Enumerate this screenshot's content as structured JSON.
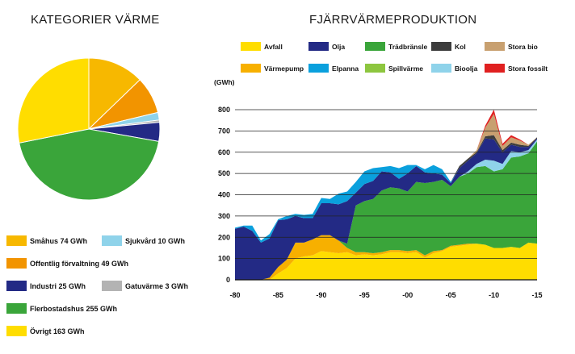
{
  "pie": {
    "title": "KATEGORIER VÄRME",
    "chart_data": {
      "type": "pie",
      "slices": [
        {
          "name": "Småhus",
          "value": 74,
          "unit": "GWh",
          "label": "Småhus 74 GWh",
          "color": "#f7b800"
        },
        {
          "name": "Offentlig förvaltning",
          "value": 49,
          "unit": "GWh",
          "label": "Offentlig förvaltning 49 GWh",
          "color": "#f29400"
        },
        {
          "name": "Sjukvård",
          "value": 10,
          "unit": "GWh",
          "label": "Sjukvård 10 GWh",
          "color": "#8fd3ea"
        },
        {
          "name": "Gatuvärme",
          "value": 3,
          "unit": "GWh",
          "label": "Gatuvärme 3 GWh",
          "color": "#b3b3b3"
        },
        {
          "name": "Industri",
          "value": 25,
          "unit": "GWh",
          "label": "Industri 25 GWh",
          "color": "#232a85"
        },
        {
          "name": "Flerbostadshus",
          "value": 255,
          "unit": "GWh",
          "label": "Flerbostadshus 255 GWh",
          "color": "#3aa53a"
        },
        {
          "name": "Övrigt",
          "value": 163,
          "unit": "GWh",
          "label": "Övrigt 163 GWh",
          "color": "#ffdd00"
        }
      ]
    }
  },
  "area": {
    "title": "FJÄRRVÄRMEPRODUKTION",
    "legend": [
      {
        "name": "Avfall",
        "color": "#ffdd00"
      },
      {
        "name": "Olja",
        "color": "#232a85"
      },
      {
        "name": "Trädbränsle",
        "color": "#3aa53a"
      },
      {
        "name": "Kol",
        "color": "#3d3d3d"
      },
      {
        "name": "Stora bio",
        "color": "#c8a070"
      },
      {
        "name": "Värmepump",
        "color": "#f7b000"
      },
      {
        "name": "Elpanna",
        "color": "#0aa0dd"
      },
      {
        "name": "Spillvärme",
        "color": "#8dc63f"
      },
      {
        "name": "Bioolja",
        "color": "#8fd3ea"
      },
      {
        "name": "Stora fossilt",
        "color": "#e02020"
      }
    ],
    "chart_data": {
      "type": "area",
      "stacked": true,
      "ylabel": "(GWh)",
      "ylim": [
        0,
        800
      ],
      "yticks": [
        0,
        100,
        200,
        300,
        400,
        500,
        600,
        700,
        800
      ],
      "xticks": [
        "-80",
        "-85",
        "-90",
        "-95",
        "-00",
        "-05",
        "-10",
        "-15"
      ],
      "xtick_years": [
        1980,
        1985,
        1990,
        1995,
        2000,
        2005,
        2010,
        2015
      ],
      "grid": true,
      "x": [
        1980,
        1981,
        1982,
        1983,
        1984,
        1985,
        1986,
        1987,
        1988,
        1989,
        1990,
        1991,
        1992,
        1993,
        1994,
        1995,
        1996,
        1997,
        1998,
        1999,
        2000,
        2001,
        2002,
        2003,
        2004,
        2005,
        2006,
        2007,
        2008,
        2009,
        2010,
        2011,
        2012,
        2013,
        2014,
        2015
      ],
      "series": [
        {
          "name": "Avfall",
          "color": "#ffdd00",
          "values": [
            0,
            0,
            0,
            0,
            0,
            30,
            55,
            100,
            110,
            115,
            135,
            130,
            125,
            130,
            115,
            120,
            115,
            120,
            130,
            130,
            125,
            130,
            105,
            125,
            135,
            155,
            160,
            165,
            170,
            165,
            150,
            150,
            155,
            150,
            175,
            170
          ]
        },
        {
          "name": "Värmepump",
          "color": "#f7b000",
          "values": [
            0,
            0,
            0,
            0,
            10,
            30,
            40,
            75,
            65,
            75,
            75,
            80,
            60,
            20,
            15,
            10,
            10,
            10,
            10,
            10,
            10,
            10,
            10,
            10,
            5,
            5,
            5,
            5,
            0,
            0,
            0,
            0,
            0,
            0,
            0,
            0
          ]
        },
        {
          "name": "Trädbränsle",
          "color": "#3aa53a",
          "values": [
            0,
            0,
            0,
            0,
            0,
            0,
            0,
            0,
            0,
            0,
            0,
            0,
            0,
            20,
            220,
            240,
            255,
            290,
            295,
            290,
            280,
            320,
            340,
            325,
            330,
            280,
            320,
            330,
            360,
            370,
            360,
            370,
            420,
            430,
            420,
            480
          ]
        },
        {
          "name": "Spillvärme",
          "color": "#8dc63f",
          "values": [
            0,
            0,
            0,
            0,
            0,
            0,
            0,
            0,
            0,
            0,
            0,
            0,
            0,
            0,
            0,
            0,
            0,
            0,
            0,
            0,
            0,
            0,
            0,
            0,
            0,
            0,
            0,
            0,
            0,
            0,
            0,
            0,
            0,
            0,
            0,
            0
          ]
        },
        {
          "name": "Bioolja",
          "color": "#8fd3ea",
          "values": [
            0,
            0,
            0,
            0,
            0,
            0,
            0,
            0,
            0,
            0,
            0,
            0,
            0,
            0,
            0,
            0,
            0,
            0,
            0,
            0,
            0,
            0,
            0,
            0,
            0,
            0,
            0,
            10,
            15,
            30,
            50,
            25,
            30,
            20,
            15,
            10
          ]
        },
        {
          "name": "Olja",
          "color": "#232a85",
          "values": [
            240,
            250,
            230,
            175,
            185,
            220,
            190,
            125,
            115,
            100,
            150,
            150,
            170,
            200,
            60,
            80,
            85,
            90,
            70,
            45,
            85,
            75,
            50,
            40,
            25,
            15,
            40,
            50,
            50,
            100,
            100,
            55,
            30,
            25,
            15,
            5
          ]
        },
        {
          "name": "Elpanna",
          "color": "#0aa0dd",
          "values": [
            5,
            5,
            25,
            10,
            20,
            5,
            15,
            10,
            15,
            20,
            25,
            20,
            50,
            45,
            50,
            60,
            60,
            20,
            30,
            50,
            40,
            5,
            15,
            40,
            25,
            5,
            0,
            0,
            0,
            0,
            0,
            0,
            0,
            0,
            0,
            0
          ]
        },
        {
          "name": "Kol",
          "color": "#3d3d3d",
          "values": [
            0,
            0,
            0,
            0,
            0,
            0,
            0,
            0,
            0,
            0,
            0,
            0,
            0,
            0,
            0,
            0,
            0,
            0,
            0,
            0,
            0,
            0,
            0,
            0,
            0,
            0,
            10,
            10,
            5,
            10,
            20,
            10,
            10,
            10,
            5,
            5
          ]
        },
        {
          "name": "Stora bio",
          "color": "#c8a070",
          "values": [
            0,
            0,
            0,
            0,
            0,
            0,
            0,
            0,
            0,
            0,
            0,
            0,
            0,
            0,
            0,
            0,
            0,
            0,
            0,
            0,
            0,
            0,
            0,
            0,
            0,
            0,
            0,
            0,
            10,
            40,
            100,
            20,
            25,
            20,
            5,
            0
          ]
        },
        {
          "name": "Stora fossilt",
          "color": "#e02020",
          "values": [
            0,
            0,
            0,
            0,
            0,
            0,
            0,
            0,
            0,
            0,
            0,
            0,
            0,
            0,
            0,
            0,
            0,
            0,
            0,
            0,
            0,
            0,
            0,
            0,
            0,
            0,
            0,
            0,
            0,
            10,
            20,
            10,
            10,
            5,
            0,
            0
          ]
        }
      ]
    }
  }
}
